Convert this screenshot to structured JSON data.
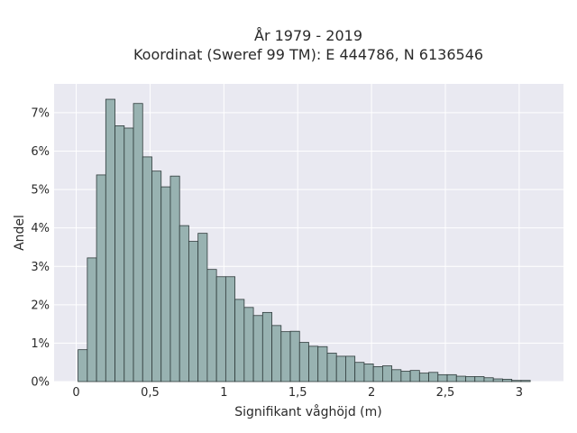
{
  "chart_data": {
    "type": "bar",
    "title_line1": "År 1979 - 2019",
    "title_line2": "Koordinat (Sweref 99 TM): E 444786, N 6136546",
    "xlabel": "Signifikant våghöjd (m)",
    "ylabel": "Andel",
    "xlim": [
      -0.15,
      3.3
    ],
    "ylim": [
      0,
      7.75
    ],
    "x_ticks": [
      {
        "value": 0,
        "label": "0"
      },
      {
        "value": 0.5,
        "label": "0,5"
      },
      {
        "value": 1,
        "label": "1"
      },
      {
        "value": 1.5,
        "label": "1,5"
      },
      {
        "value": 2,
        "label": "2"
      },
      {
        "value": 2.5,
        "label": "2,5"
      },
      {
        "value": 3,
        "label": "3"
      }
    ],
    "y_ticks": [
      {
        "value": 0,
        "label": "0%"
      },
      {
        "value": 1,
        "label": "1%"
      },
      {
        "value": 2,
        "label": "2%"
      },
      {
        "value": 3,
        "label": "3%"
      },
      {
        "value": 4,
        "label": "4%"
      },
      {
        "value": 5,
        "label": "5%"
      },
      {
        "value": 6,
        "label": "6%"
      },
      {
        "value": 7,
        "label": "7%"
      }
    ],
    "grid": true,
    "bin_width": 0.0625,
    "bin_start": 0.0125,
    "values": [
      0.83,
      3.22,
      5.38,
      7.35,
      6.66,
      6.6,
      7.24,
      5.85,
      5.48,
      5.07,
      5.35,
      4.06,
      3.65,
      3.86,
      2.92,
      2.73,
      2.73,
      2.14,
      1.93,
      1.72,
      1.8,
      1.46,
      1.3,
      1.31,
      1.02,
      0.92,
      0.91,
      0.74,
      0.66,
      0.66,
      0.5,
      0.46,
      0.39,
      0.41,
      0.31,
      0.27,
      0.29,
      0.22,
      0.24,
      0.18,
      0.18,
      0.14,
      0.13,
      0.13,
      0.1,
      0.07,
      0.06,
      0.03,
      0.03
    ],
    "bar_color": "#98b2b1",
    "bar_edge_color": "#2f3b3b",
    "plot_background": "#e9e9f1"
  }
}
